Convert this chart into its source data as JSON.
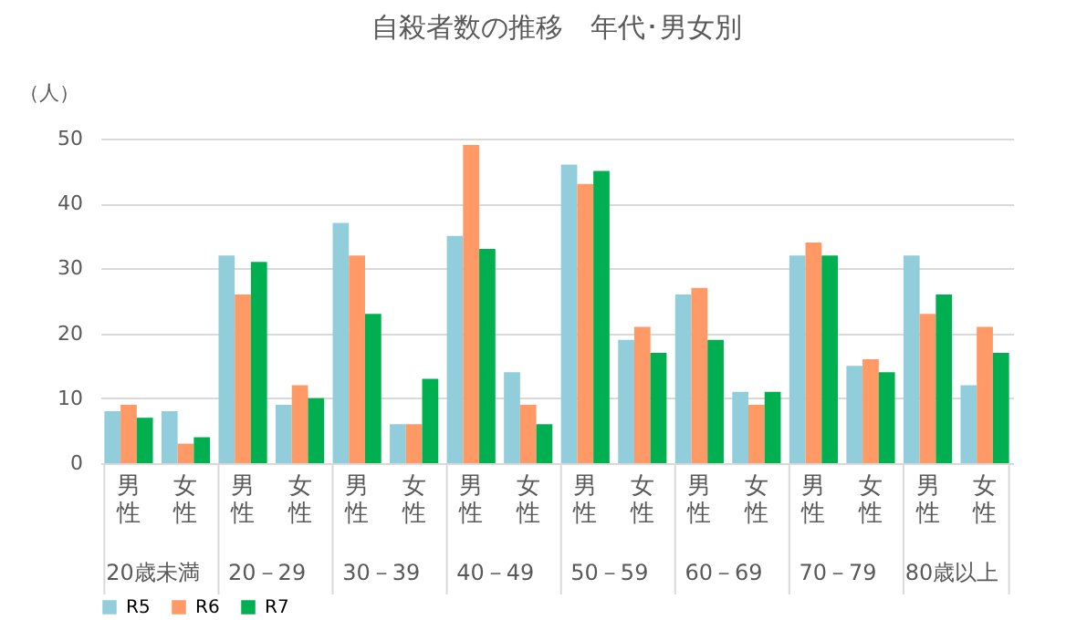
{
  "chart_data": {
    "type": "bar",
    "title": "自殺者数の推移　年代･男女別",
    "ylabel": "（人）",
    "categories": [
      "男性",
      "女性",
      "男性",
      "女性",
      "男性",
      "女性",
      "男性",
      "女性",
      "男性",
      "女性",
      "男性",
      "女性",
      "男性",
      "女性",
      "男性",
      "女性"
    ],
    "annotations": [
      "20歳未満",
      "20－29",
      "30－39",
      "40－49",
      "50－59",
      "60－69",
      "70－79",
      "80歳以上"
    ],
    "series": [
      {
        "name": "R5",
        "color": "#92cddc",
        "values": [
          8,
          8,
          32,
          9,
          37,
          6,
          35,
          14,
          46,
          19,
          26,
          11,
          32,
          15,
          32,
          12
        ]
      },
      {
        "name": "R6",
        "color": "#ff9966",
        "values": [
          9,
          3,
          26,
          12,
          32,
          6,
          49,
          9,
          43,
          21,
          27,
          9,
          34,
          16,
          23,
          21
        ]
      },
      {
        "name": "R7",
        "color": "#00b050",
        "values": [
          7,
          4,
          31,
          10,
          23,
          13,
          33,
          6,
          45,
          17,
          19,
          11,
          32,
          14,
          26,
          17
        ]
      }
    ],
    "ylim": [
      0,
      50
    ],
    "yticks": [
      0,
      10,
      20,
      30,
      40,
      50
    ],
    "grid": "y",
    "legend": "bottom"
  }
}
